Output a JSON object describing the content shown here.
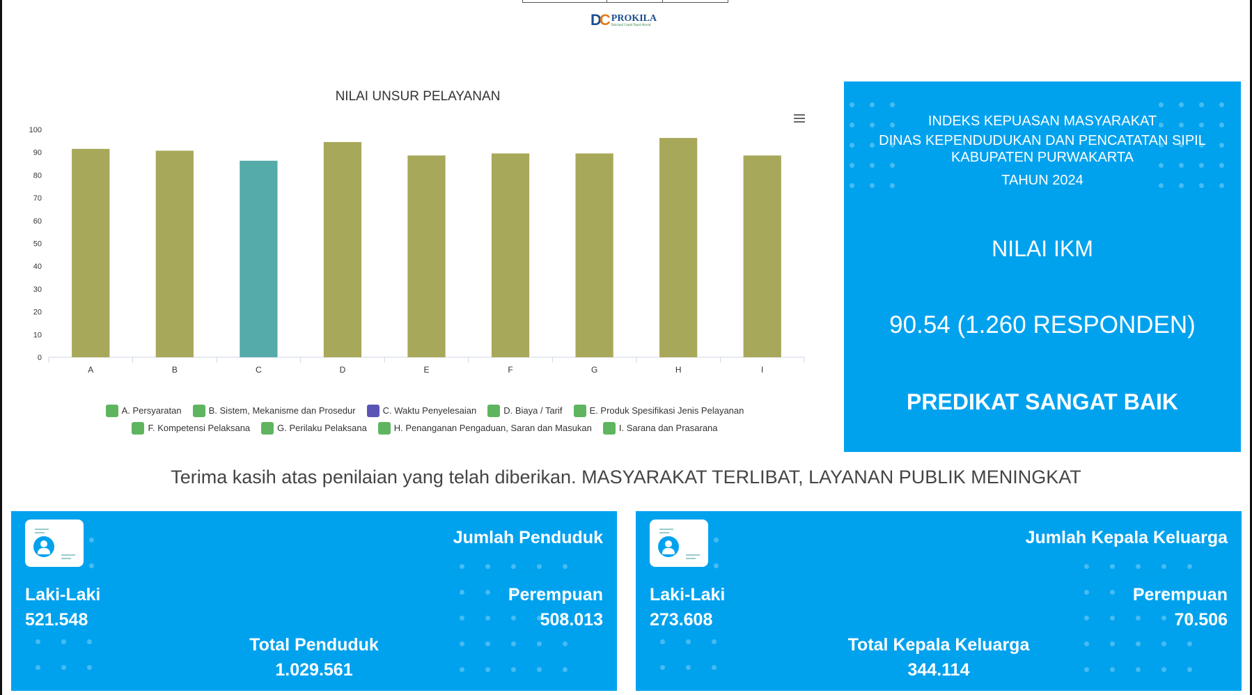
{
  "logo": {
    "name": "PROKILA",
    "tagline": "Dukcapil Cepat Tepat Akurat"
  },
  "chart_data": {
    "type": "bar",
    "title": "NILAI UNSUR PELAYANAN",
    "categories": [
      "A",
      "B",
      "C",
      "D",
      "E",
      "F",
      "G",
      "H",
      "I"
    ],
    "values": [
      91.5,
      90.7,
      86.3,
      94.5,
      88.6,
      89.5,
      89.5,
      96.3,
      88.6
    ],
    "colors": [
      "#a8a85a",
      "#a8a85a",
      "#55aaaa",
      "#a8a85a",
      "#a8a85a",
      "#a8a85a",
      "#a8a85a",
      "#a8a85a",
      "#a8a85a"
    ],
    "ylim": [
      0,
      100
    ],
    "yticks": [
      0,
      10,
      20,
      30,
      40,
      50,
      60,
      70,
      80,
      90,
      100
    ],
    "grid": false,
    "legend": [
      {
        "label": "A. Persyaratan",
        "color": "#5fb55f"
      },
      {
        "label": "B. Sistem, Mekanisme dan Prosedur",
        "color": "#5fb55f"
      },
      {
        "label": "C. Waktu Penyelesaian",
        "color": "#5a55b5"
      },
      {
        "label": "D. Biaya / Tarif",
        "color": "#5fb55f"
      },
      {
        "label": "E. Produk Spesifikasi Jenis Pelayanan",
        "color": "#5fb55f"
      },
      {
        "label": "F. Kompetensi Pelaksana",
        "color": "#5fb55f"
      },
      {
        "label": "G. Perilaku Pelaksana",
        "color": "#5fb55f"
      },
      {
        "label": "H. Penanganan Pengaduan, Saran dan Masukan",
        "color": "#5fb55f"
      },
      {
        "label": "I. Sarana dan Prasarana",
        "color": "#5fb55f"
      }
    ]
  },
  "ikm": {
    "line1": "INDEKS KEPUASAN MASYARAKAT",
    "line2": "DINAS KEPENDUDUKAN DAN PENCATATAN SIPIL",
    "line3": "KABUPATEN PURWAKARTA",
    "line4": "TAHUN 2024",
    "nilai_label": "NILAI IKM",
    "nilai_value": "90.54 (1.260 RESPONDEN)",
    "predikat": "PREDIKAT SANGAT BAIK",
    "bg_color": "#00a2ee"
  },
  "thanks": "Terima kasih atas penilaian yang telah diberikan. MASYARAKAT TERLIBAT, LAYANAN PUBLIK MENINGKAT",
  "penduduk": {
    "title": "Jumlah Penduduk",
    "male_label": "Laki-Laki",
    "male_value": "521.548",
    "female_label": "Perempuan",
    "female_value": "508.013",
    "total_label": "Total Penduduk",
    "total_value": "1.029.561"
  },
  "kepala_keluarga": {
    "title": "Jumlah Kepala Keluarga",
    "male_label": "Laki-Laki",
    "male_value": "273.608",
    "female_label": "Perempuan",
    "female_value": "70.506",
    "total_label": "Total Kepala Keluarga",
    "total_value": "344.114"
  }
}
